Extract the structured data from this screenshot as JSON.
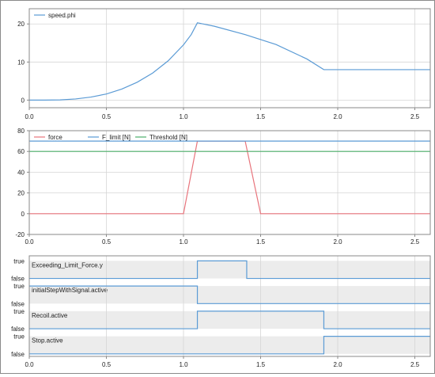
{
  "chart_data": [
    {
      "type": "line",
      "title": "",
      "xlabel": "",
      "ylabel": "",
      "xlim": [
        0,
        2.6
      ],
      "ylim": [
        -2,
        24
      ],
      "xticks": [
        "0.0",
        "0.5",
        "1.0",
        "1.5",
        "2.0",
        "2.5"
      ],
      "xtick_values": [
        0,
        0.5,
        1.0,
        1.5,
        2.0,
        2.5
      ],
      "yticks": [
        "0",
        "10",
        "20"
      ],
      "ytick_values": [
        0,
        10,
        20
      ],
      "grid": true,
      "legend_position": "top-left",
      "series": [
        {
          "name": "speed.phi",
          "color": "#5b9bd5",
          "points": [
            [
              0,
              0
            ],
            [
              0.1,
              0.01
            ],
            [
              0.2,
              0.06
            ],
            [
              0.3,
              0.3
            ],
            [
              0.4,
              0.8
            ],
            [
              0.5,
              1.6
            ],
            [
              0.6,
              2.9
            ],
            [
              0.7,
              4.7
            ],
            [
              0.8,
              7.1
            ],
            [
              0.9,
              10.3
            ],
            [
              1.0,
              14.5
            ],
            [
              1.05,
              17.2
            ],
            [
              1.09,
              20.3
            ],
            [
              1.2,
              19.4
            ],
            [
              1.4,
              17.2
            ],
            [
              1.6,
              14.6
            ],
            [
              1.8,
              10.8
            ],
            [
              1.91,
              8.0
            ],
            [
              2.0,
              8.0
            ],
            [
              2.6,
              8.0
            ]
          ]
        }
      ]
    },
    {
      "type": "line",
      "title": "",
      "xlabel": "",
      "ylabel": "",
      "xlim": [
        0,
        2.6
      ],
      "ylim": [
        -20,
        80
      ],
      "xticks": [
        "0.0",
        "0.5",
        "1.0",
        "1.5",
        "2.0",
        "2.5"
      ],
      "xtick_values": [
        0,
        0.5,
        1.0,
        1.5,
        2.0,
        2.5
      ],
      "yticks": [
        "-20",
        "0",
        "20",
        "40",
        "60",
        "80"
      ],
      "ytick_values": [
        -20,
        0,
        20,
        40,
        60,
        80
      ],
      "grid": true,
      "legend_position": "top-left",
      "series": [
        {
          "name": "force",
          "color": "#e8747c",
          "points": [
            [
              0,
              0
            ],
            [
              1.0,
              0
            ],
            [
              1.09,
              70
            ],
            [
              1.4,
              70
            ],
            [
              1.5,
              0
            ],
            [
              2.6,
              0
            ]
          ]
        },
        {
          "name": "F_limit [N]",
          "color": "#5b9bd5",
          "points": [
            [
              0,
              70
            ],
            [
              2.6,
              70
            ]
          ]
        },
        {
          "name": "Threshold [N]",
          "color": "#4caf6a",
          "points": [
            [
              0,
              60
            ],
            [
              2.6,
              60
            ]
          ]
        }
      ]
    },
    {
      "type": "line",
      "title": "",
      "xlabel": "",
      "ylabel": "",
      "xlim": [
        0,
        2.6
      ],
      "xticks": [
        "0.0",
        "0.5",
        "1.0",
        "1.5",
        "2.0",
        "2.5"
      ],
      "xtick_values": [
        0,
        0.5,
        1.0,
        1.5,
        2.0,
        2.5
      ],
      "true_label": "true",
      "false_label": "false",
      "grid": true,
      "signals": [
        {
          "name": "Exceeding_Limit_Force.y",
          "color": "#5b9bd5",
          "transitions": [
            [
              0,
              false
            ],
            [
              1.09,
              true
            ],
            [
              1.41,
              false
            ]
          ]
        },
        {
          "name": "initialStepWithSignal.active",
          "color": "#5b9bd5",
          "transitions": [
            [
              0,
              true
            ],
            [
              1.09,
              false
            ]
          ]
        },
        {
          "name": "Recoil.active",
          "color": "#5b9bd5",
          "transitions": [
            [
              0,
              false
            ],
            [
              1.09,
              true
            ],
            [
              1.91,
              false
            ]
          ]
        },
        {
          "name": "Stop.active",
          "color": "#5b9bd5",
          "transitions": [
            [
              0,
              false
            ],
            [
              1.91,
              true
            ]
          ]
        }
      ]
    }
  ]
}
